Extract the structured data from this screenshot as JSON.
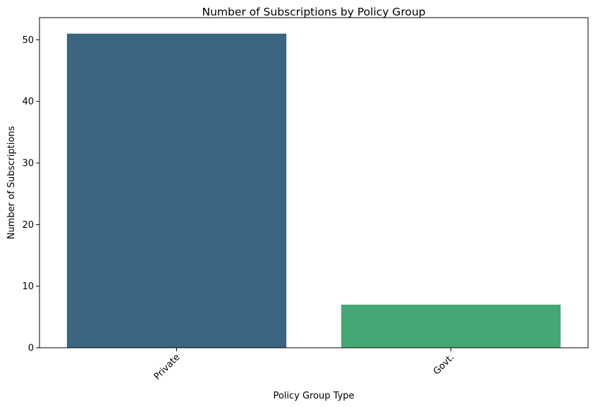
{
  "chart_data": {
    "type": "bar",
    "title": "Number of Subscriptions by Policy Group",
    "xlabel": "Policy Group Type",
    "ylabel": "Number of Subscriptions",
    "categories": [
      "Private",
      "Govt."
    ],
    "values": [
      51,
      7
    ],
    "colors": [
      "#3b6581",
      "#45a775"
    ],
    "ylim": [
      0,
      53.6
    ],
    "yticks": [
      0,
      10,
      20,
      30,
      40,
      50
    ],
    "grid": false,
    "legend": "none",
    "xtick_rotation": 45
  }
}
